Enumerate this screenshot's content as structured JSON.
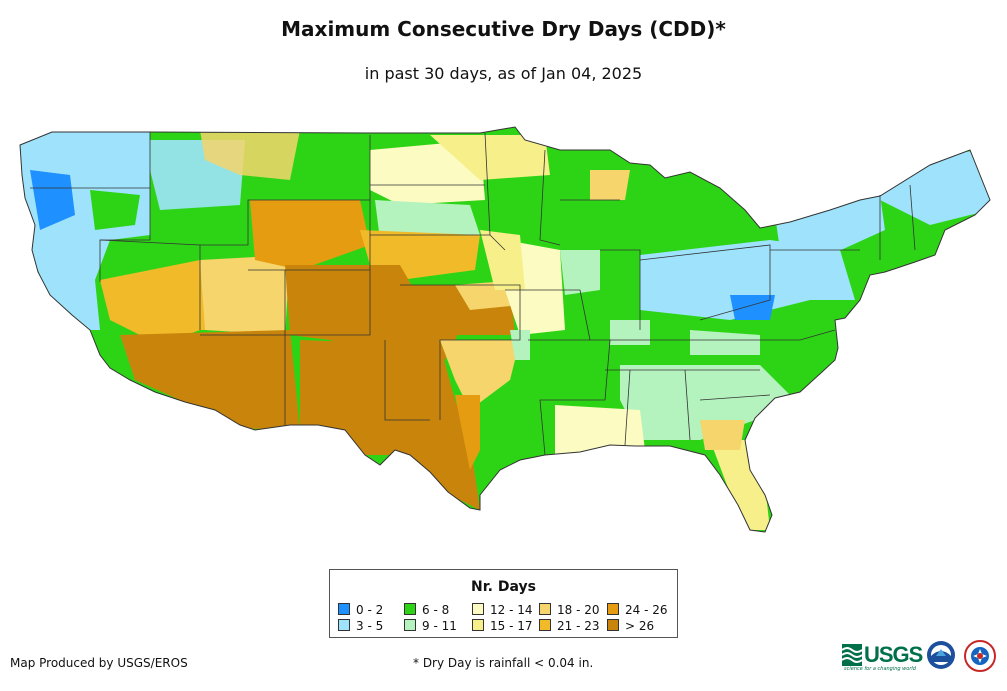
{
  "title": "Maximum Consecutive Dry Days (CDD)*",
  "subtitle": "in past 30 days, as of Jan 04, 2025",
  "legend": {
    "title": "Nr. Days",
    "items": [
      {
        "label": "0 - 2",
        "color": "#1e90ff"
      },
      {
        "label": "3 - 5",
        "color": "#9ee3fb"
      },
      {
        "label": "6 - 8",
        "color": "#2dd416"
      },
      {
        "label": "9 - 11",
        "color": "#b4f2be"
      },
      {
        "label": "12 - 14",
        "color": "#fbfbc2"
      },
      {
        "label": "15 - 17",
        "color": "#f6ef8a"
      },
      {
        "label": "18 - 20",
        "color": "#f5d56c"
      },
      {
        "label": "21 - 23",
        "color": "#f0ba28"
      },
      {
        "label": "24 - 26",
        "color": "#e59c11"
      },
      {
        "label": "> 26",
        "color": "#c9850b"
      }
    ]
  },
  "credit": "Map Produced by USGS/EROS",
  "footnote": "* Dry Day is rainfall < 0.04 in.",
  "logos": {
    "usgs": "USGS",
    "usgs_tagline": "science for a changing world"
  }
}
